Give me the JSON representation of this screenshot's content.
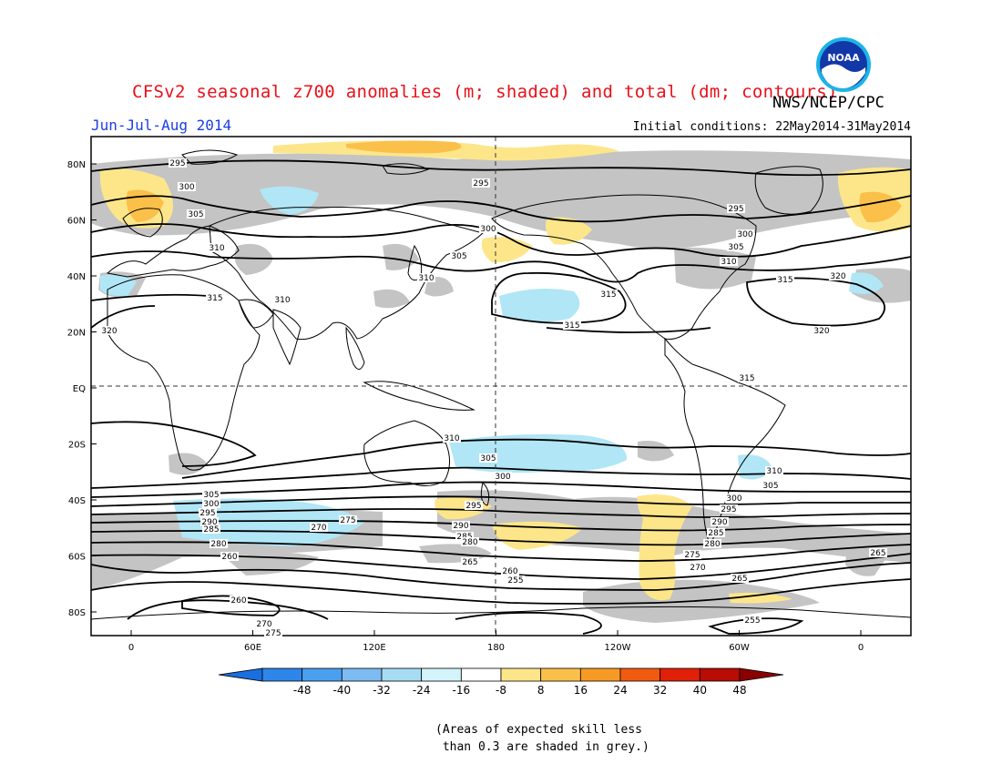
{
  "title": "CFSv2 seasonal z700 anomalies (m; shaded) and total (dm; contours)",
  "agency": "NWS/NCEP/CPC",
  "logo_text": "NOAA",
  "season": "Jun-Jul-Aug 2014",
  "initial_conditions": "Initial conditions: 22May2014-31May2014",
  "lat_labels": [
    "80N",
    "60N",
    "40N",
    "20N",
    "EQ",
    "20S",
    "40S",
    "60S",
    "80S"
  ],
  "lon_labels": [
    "0",
    "60E",
    "120E",
    "180",
    "120W",
    "60W",
    "0"
  ],
  "colorbar": {
    "labels": [
      "-48",
      "-40",
      "-32",
      "-24",
      "-16",
      "-8",
      "8",
      "16",
      "24",
      "32",
      "40",
      "48"
    ],
    "colors": [
      "#1a6fe0",
      "#2e86ea",
      "#4b9ff0",
      "#7cbcf3",
      "#a7dcf5",
      "#d4f4fb",
      "#ffffff",
      "#fde68a",
      "#fbc04a",
      "#f79a24",
      "#f25a10",
      "#e02008",
      "#b80c04",
      "#8a0000"
    ]
  },
  "contour_labels": [
    "295",
    "300",
    "305",
    "310",
    "315",
    "320",
    "295",
    "300",
    "305",
    "310",
    "315",
    "320",
    "295",
    "300",
    "305",
    "310",
    "315",
    "320",
    "310",
    "315",
    "310",
    "305",
    "300",
    "295",
    "290",
    "285",
    "280",
    "275",
    "270",
    "265",
    "260",
    "255",
    "315",
    "310",
    "305",
    "300",
    "295",
    "290",
    "285",
    "280",
    "275",
    "270",
    "265",
    "260",
    "255",
    "305",
    "300",
    "295",
    "290",
    "285",
    "280",
    "275",
    "270",
    "265",
    "260"
  ],
  "note": "(Areas of expected skill less\n than 0.3 are shaded in grey.)"
}
